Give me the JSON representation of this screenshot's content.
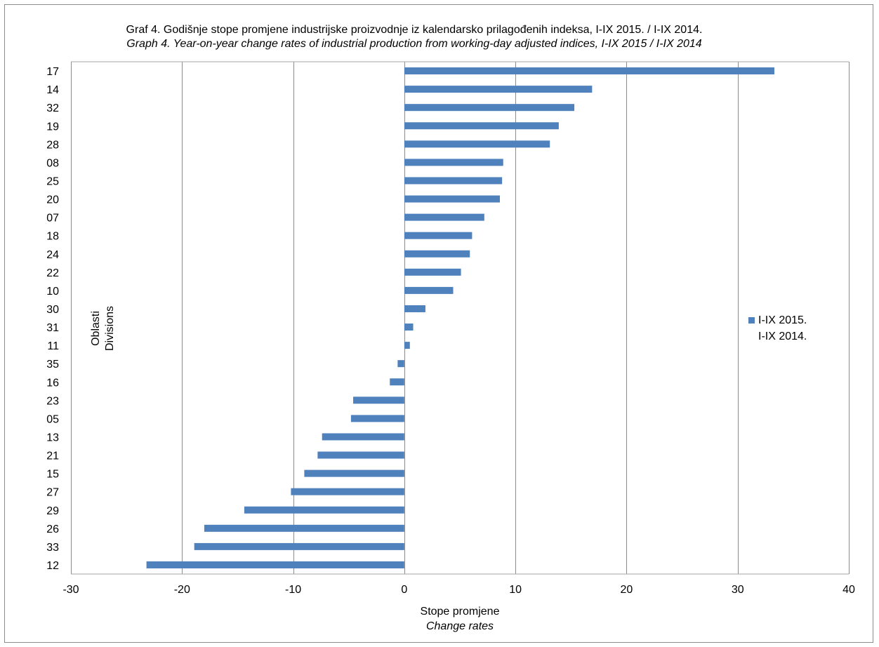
{
  "chart_data": {
    "type": "bar",
    "orientation": "horizontal",
    "title": "Graf 4. Godišnje stope  promjene industrijske proizvodnje iz kalendarsko prilagođenih indeksa, I-IX  2015. / I-IX  2014.",
    "subtitle": "Graph 4. Year-on-year change rates of industrial production from working-day adjusted indices, I-IX 2015 / I-IX 2014",
    "xlabel": "Stope promjene",
    "xlabel_en": "Change rates",
    "ylabel": "Oblasti",
    "ylabel_en": "Divisions",
    "xlim": [
      -30,
      40
    ],
    "xticks": [
      -30,
      -20,
      -10,
      0,
      10,
      20,
      30,
      40
    ],
    "grid": true,
    "legend_position": "right",
    "categories": [
      "17",
      "14",
      "32",
      "19",
      "28",
      "08",
      "25",
      "20",
      "07",
      "18",
      "24",
      "22",
      "10",
      "30",
      "31",
      "11",
      "35",
      "16",
      "23",
      "05",
      "13",
      "21",
      "15",
      "27",
      "29",
      "26",
      "33",
      "12"
    ],
    "series": [
      {
        "name": "I-IX 2015. / I-IX 2014.",
        "legend_lines": [
          "I-IX 2015.",
          "I-IX 2014."
        ],
        "color": "#4f81bd",
        "values": [
          33.3,
          16.9,
          15.3,
          13.9,
          13.1,
          8.9,
          8.8,
          8.6,
          7.2,
          6.1,
          5.9,
          5.1,
          4.4,
          1.9,
          0.8,
          0.5,
          -0.6,
          -1.3,
          -4.6,
          -4.8,
          -7.4,
          -7.8,
          -9.0,
          -10.2,
          -14.4,
          -18.0,
          -18.9,
          -23.2
        ]
      }
    ]
  }
}
